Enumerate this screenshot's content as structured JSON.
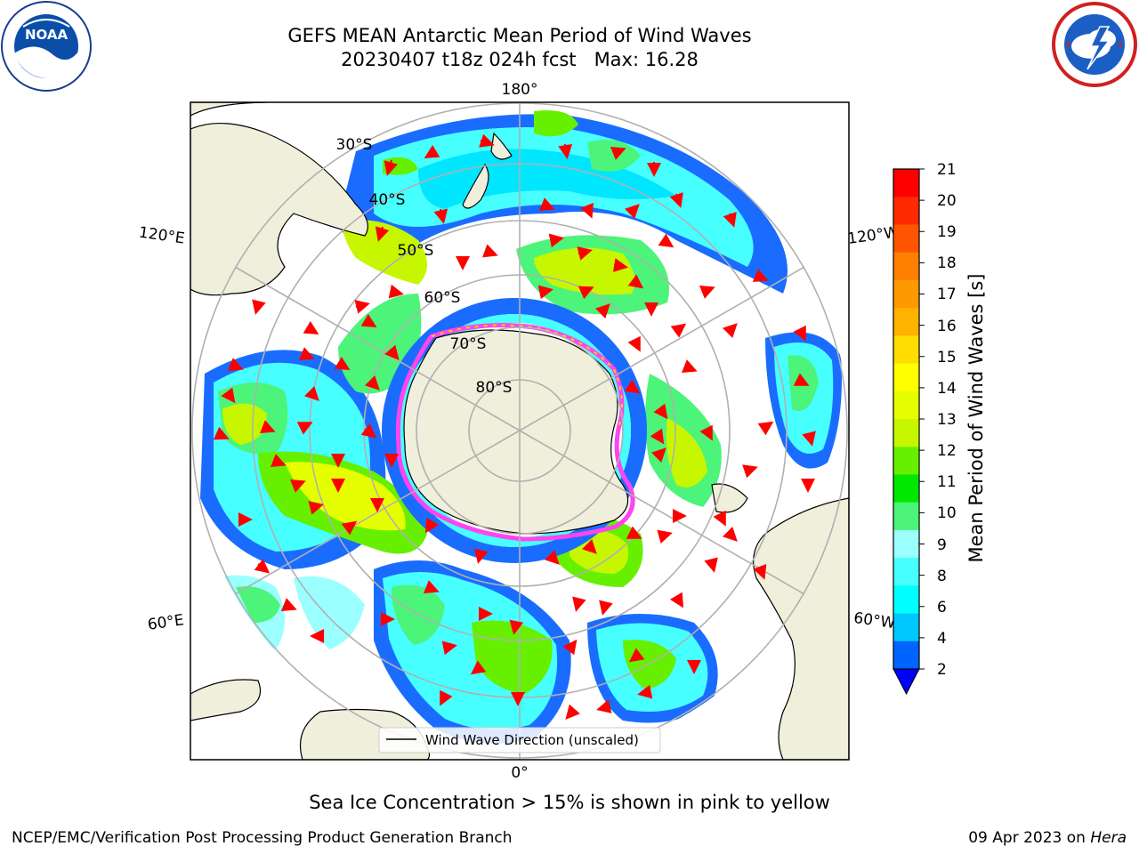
{
  "title": {
    "line1": "GEFS MEAN Antarctic Mean Period of Wind Waves",
    "line2": "20230407 t18z 024h fcst   Max: 16.28"
  },
  "map": {
    "projection": "south polar stereographic",
    "lon_labels": {
      "top": "180°",
      "bottom": "0°",
      "upper_left": "120°E",
      "upper_right": "120°W",
      "lower_left": "60°E",
      "lower_right": "60°W"
    },
    "lat_labels": [
      "30°S",
      "40°S",
      "50°S",
      "60°S",
      "70°S",
      "80°S"
    ],
    "colors": {
      "land": "#efefdb",
      "ice_edge": "#ff44ee",
      "arrows": "#ff0000",
      "grid": "#b0b0b0"
    }
  },
  "legend": {
    "label": "Wind Wave Direction (unscaled)"
  },
  "colorbar": {
    "label": "Mean Period of Wind Waves [s]",
    "ticks": [
      "21",
      "20",
      "19",
      "18",
      "17",
      "16",
      "15",
      "14",
      "13",
      "12",
      "11",
      "10",
      "9",
      "8",
      "6",
      "4",
      "2"
    ],
    "colors_top_to_bottom": [
      "#ff0000",
      "#ff2a00",
      "#ff5500",
      "#ff7f00",
      "#ff9900",
      "#ffb300",
      "#ffdd00",
      "#ffff00",
      "#e6ff00",
      "#c6f700",
      "#66f000",
      "#00e800",
      "#4cf47a",
      "#9bffff",
      "#48ffff",
      "#00ffff",
      "#00c8ff",
      "#0064ff"
    ],
    "under_color": "#0000ff"
  },
  "ice_note": "Sea Ice Concentration > 15% is shown in pink to yellow",
  "footer": {
    "left": "NCEP/EMC/Verification Post Processing Product Generation Branch",
    "right_date": "09 Apr 2023 on ",
    "right_host": "Hera"
  }
}
